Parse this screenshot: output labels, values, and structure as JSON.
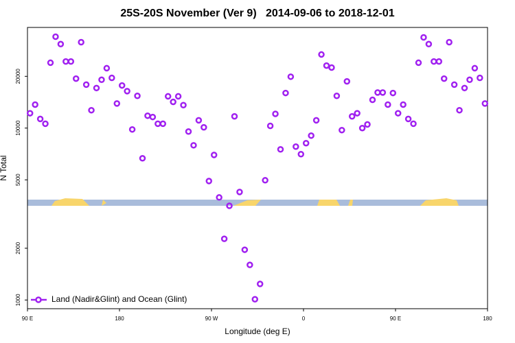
{
  "chart_data": {
    "type": "scatter",
    "title": "25S-20S November (Ver 9)   2014-09-06 to 2018-12-01",
    "x_label": "Longitude (deg E)",
    "y_label": "N Total",
    "log_y": true,
    "legend": "bottom-left",
    "xlim": [
      90,
      540
    ],
    "ylim": [
      890,
      38500
    ],
    "xticks": [
      {
        "value": 90,
        "label": "90 E"
      },
      180,
      {
        "value": 270,
        "label": "90 W"
      },
      {
        "value": 360,
        "label": "0"
      },
      {
        "value": 450,
        "label": "90 E"
      },
      {
        "value": 540,
        "label": "180"
      }
    ],
    "yticks": [
      1000,
      2000,
      5000,
      10000,
      20000
    ],
    "x": [
      92.5,
      97.5,
      102.5,
      107.5,
      112.5,
      117.5,
      122.5,
      127.5,
      132.5,
      137.5,
      142.5,
      147.5,
      152.5,
      157.5,
      162.5,
      167.5,
      172.5,
      177.5,
      182.5,
      187.5,
      192.5,
      197.5,
      202.5,
      207.5,
      212.5,
      217.5,
      222.5,
      227.5,
      232.5,
      237.5,
      242.5,
      247.5,
      252.5,
      257.5,
      262.5,
      267.5,
      272.5,
      277.5,
      282.5,
      287.5,
      292.5,
      297.5,
      302.5,
      307.5,
      312.5,
      317.5,
      322.5,
      327.5,
      332.5,
      337.5,
      342.5,
      347.5,
      352.5,
      357.5,
      362.5,
      367.5,
      372.5,
      377.5,
      382.5,
      387.5,
      392.5,
      397.5,
      402.5,
      407.5,
      412.5,
      417.5,
      422.5,
      427.5,
      432.5,
      437.5,
      442.5,
      447.5,
      452.5,
      457.5,
      462.5,
      467.5,
      472.5,
      477.5,
      482.5,
      487.5,
      492.5,
      497.5,
      502.5,
      507.5,
      512.5,
      517.5,
      522.5,
      527.5,
      532.5,
      537.5
    ],
    "series": [
      {
        "name": "Land (Nadir&Glint) and Ocean (Glint)",
        "color": "#a020f0",
        "values": [
          12200,
          13700,
          11300,
          10600,
          24000,
          34000,
          30800,
          24400,
          24400,
          19400,
          31600,
          17900,
          12700,
          17100,
          19100,
          22300,
          19600,
          13900,
          17700,
          16400,
          9820,
          15400,
          6670,
          11800,
          11600,
          10600,
          10600,
          15300,
          14200,
          15300,
          13600,
          9550,
          7940,
          11100,
          10100,
          4920,
          6980,
          3950,
          2270,
          3530,
          11700,
          4250,
          1960,
          1600,
          1010,
          1240,
          4970,
          10300,
          12100,
          7520,
          16000,
          19900,
          7800,
          7050,
          8170,
          9040,
          11100,
          26800,
          23100,
          22500,
          15400,
          9730,
          18700,
          11700,
          12200,
          10000,
          10500,
          14600,
          16100,
          16100,
          13700,
          16000,
          12200,
          13700,
          11300,
          10600,
          24000,
          33700,
          30800,
          24400,
          24400,
          19400,
          31600,
          17900,
          12700,
          17100,
          19100,
          22300,
          19600,
          13900
        ]
      }
    ]
  }
}
